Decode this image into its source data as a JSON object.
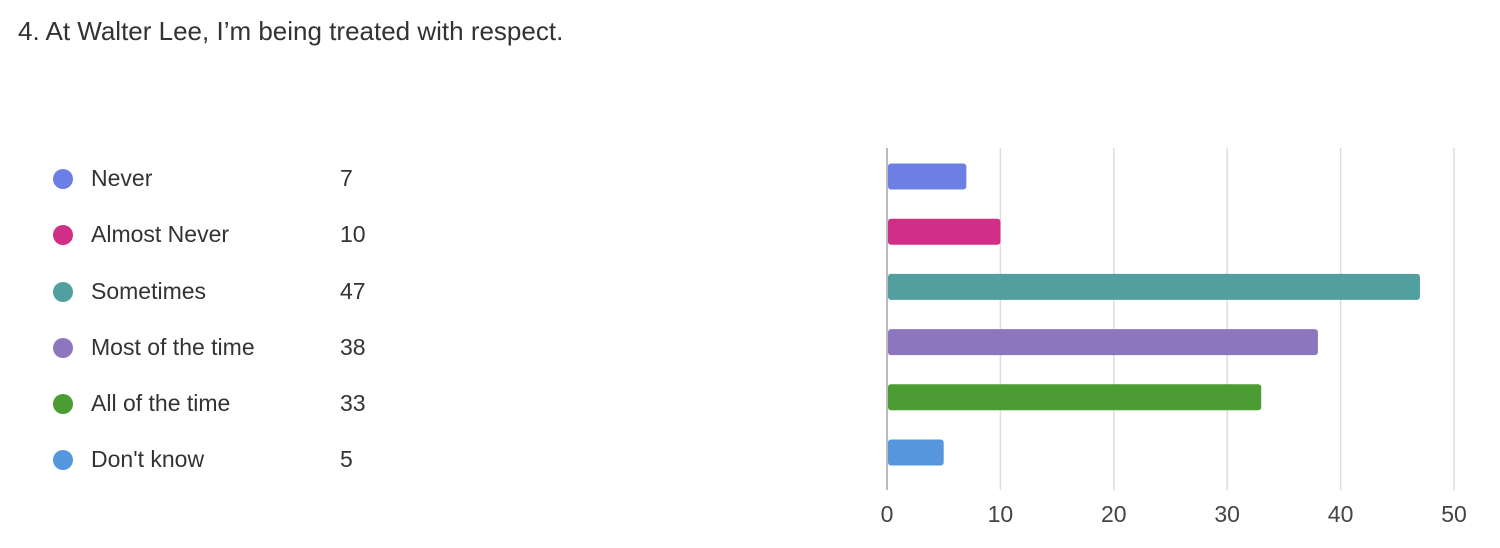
{
  "question": {
    "title": "4. At Walter Lee, I’m being treated with respect."
  },
  "legend": {
    "items": [
      {
        "label": "Never",
        "count": "7",
        "color": "#6b7fe5"
      },
      {
        "label": "Almost Never",
        "count": "10",
        "color": "#d12e87"
      },
      {
        "label": "Sometimes",
        "count": "47",
        "color": "#529fa0"
      },
      {
        "label": "Most of the time",
        "count": "38",
        "color": "#8e76be"
      },
      {
        "label": "All of the time",
        "count": "33",
        "color": "#4a9c33"
      },
      {
        "label": "Don't know",
        "count": "5",
        "color": "#5596dd"
      }
    ]
  },
  "chart_data": {
    "type": "bar",
    "orientation": "horizontal",
    "categories": [
      "Never",
      "Almost Never",
      "Sometimes",
      "Most of the time",
      "All of the time",
      "Don't know"
    ],
    "values": [
      7,
      10,
      47,
      38,
      33,
      5
    ],
    "colors": [
      "#6b7fe5",
      "#d12e87",
      "#529fa0",
      "#8e76be",
      "#4a9c33",
      "#5596dd"
    ],
    "xlim": [
      0,
      50
    ],
    "x_ticks": [
      0,
      10,
      20,
      30,
      40,
      50
    ],
    "grid": true,
    "legend_position": "left"
  }
}
